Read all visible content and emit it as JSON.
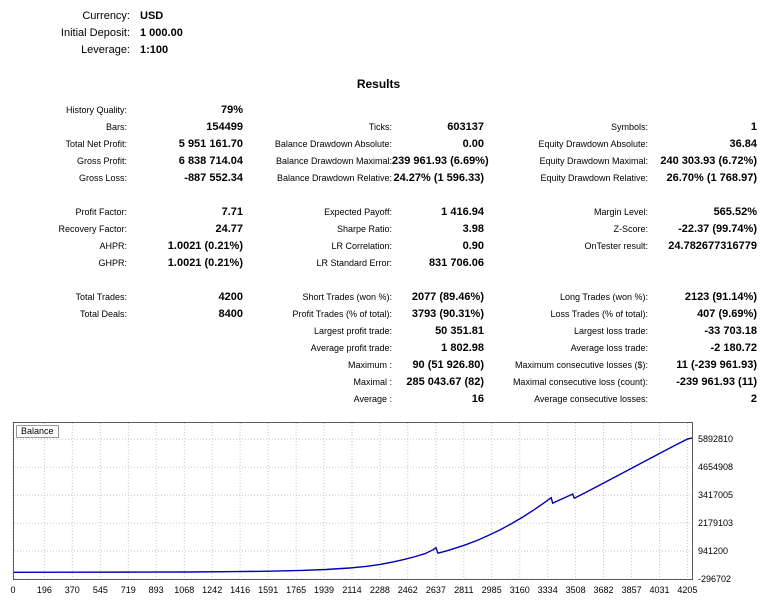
{
  "header": {
    "rows": [
      {
        "label": "Currency:",
        "value": "USD"
      },
      {
        "label": "Initial Deposit:",
        "value": "1 000.00"
      },
      {
        "label": "Leverage:",
        "value": "1:100"
      }
    ]
  },
  "stats": {
    "title": "Results",
    "sections": [
      {
        "rows": [
          [
            [
              "History Quality:",
              "79%"
            ],
            [
              "",
              ""
            ],
            [
              "",
              ""
            ]
          ],
          [
            [
              "Bars:",
              "154499"
            ],
            [
              "Ticks:",
              "603137"
            ],
            [
              "Symbols:",
              "1"
            ]
          ],
          [
            [
              "Total Net Profit:",
              "5 951 161.70"
            ],
            [
              "Balance Drawdown Absolute:",
              "0.00"
            ],
            [
              "Equity Drawdown Absolute:",
              "36.84"
            ]
          ],
          [
            [
              "Gross Profit:",
              "6 838 714.04"
            ],
            [
              "Balance Drawdown Maximal:",
              "239 961.93 (6.69%)"
            ],
            [
              "Equity Drawdown Maximal:",
              "240 303.93 (6.72%)"
            ]
          ],
          [
            [
              "Gross Loss:",
              "-887 552.34"
            ],
            [
              "Balance Drawdown Relative:",
              "24.27% (1 596.33)"
            ],
            [
              "Equity Drawdown Relative:",
              "26.70% (1 768.97)"
            ]
          ]
        ]
      },
      {
        "rows": [
          [
            [
              "Profit Factor:",
              "7.71"
            ],
            [
              "Expected Payoff:",
              "1 416.94"
            ],
            [
              "Margin Level:",
              "565.52%"
            ]
          ],
          [
            [
              "Recovery Factor:",
              "24.77"
            ],
            [
              "Sharpe Ratio:",
              "3.98"
            ],
            [
              "Z-Score:",
              "-22.37 (99.74%)"
            ]
          ],
          [
            [
              "AHPR:",
              "1.0021 (0.21%)"
            ],
            [
              "LR Correlation:",
              "0.90"
            ],
            [
              "OnTester result:",
              "24.782677316779"
            ]
          ],
          [
            [
              "GHPR:",
              "1.0021 (0.21%)"
            ],
            [
              "LR Standard Error:",
              "831 706.06"
            ],
            [
              "",
              ""
            ]
          ]
        ]
      },
      {
        "rows": [
          [
            [
              "Total Trades:",
              "4200"
            ],
            [
              "Short Trades (won %):",
              "2077 (89.46%)"
            ],
            [
              "Long Trades (won %):",
              "2123 (91.14%)"
            ]
          ],
          [
            [
              "Total Deals:",
              "8400"
            ],
            [
              "Profit Trades (% of total):",
              "3793 (90.31%)"
            ],
            [
              "Loss Trades (% of total):",
              "407 (9.69%)"
            ]
          ],
          [
            [
              "",
              ""
            ],
            [
              "Largest profit trade:",
              "50 351.81"
            ],
            [
              "Largest loss trade:",
              "-33 703.18"
            ]
          ],
          [
            [
              "",
              ""
            ],
            [
              "Average profit trade:",
              "1 802.98"
            ],
            [
              "Average loss trade:",
              "-2 180.72"
            ]
          ],
          [
            [
              "",
              ""
            ],
            [
              "Maximum :",
              "90 (51 926.80)"
            ],
            [
              "Maximum consecutive losses ($):",
              "11 (-239 961.93)"
            ]
          ],
          [
            [
              "",
              ""
            ],
            [
              "Maximal :",
              "285 043.67 (82)"
            ],
            [
              "Maximal consecutive loss (count):",
              "-239 961.93 (11)"
            ]
          ],
          [
            [
              "",
              ""
            ],
            [
              "Average :",
              "16"
            ],
            [
              "Average consecutive losses:",
              "2"
            ]
          ]
        ]
      }
    ]
  },
  "chart_data": {
    "type": "line",
    "title": "Balance",
    "line_color": "#0000b8",
    "grid": "dotted",
    "x_range": [
      0,
      4240
    ],
    "y_range": [
      -340000,
      6650000
    ],
    "x_ticks": [
      0,
      196,
      370,
      545,
      719,
      893,
      1068,
      1242,
      1416,
      1591,
      1765,
      1939,
      2114,
      2288,
      2462,
      2637,
      2811,
      2985,
      3160,
      3334,
      3508,
      3682,
      3857,
      4031,
      4205
    ],
    "y_ticks": [
      -296702,
      941200,
      2179103,
      3417005,
      4654908,
      5892810
    ],
    "series": [
      {
        "name": "Balance",
        "points": [
          [
            0,
            1000
          ],
          [
            400,
            3000
          ],
          [
            800,
            8000
          ],
          [
            1100,
            16000
          ],
          [
            1400,
            30000
          ],
          [
            1600,
            50000
          ],
          [
            1800,
            85000
          ],
          [
            1950,
            125000
          ],
          [
            2100,
            190000
          ],
          [
            2200,
            260000
          ],
          [
            2290,
            350000
          ],
          [
            2370,
            460000
          ],
          [
            2440,
            570000
          ],
          [
            2510,
            700000
          ],
          [
            2570,
            830000
          ],
          [
            2620,
            1000000
          ],
          [
            2637,
            1090000
          ],
          [
            2650,
            845000
          ],
          [
            2700,
            940000
          ],
          [
            2760,
            1070000
          ],
          [
            2830,
            1240000
          ],
          [
            2900,
            1430000
          ],
          [
            2970,
            1650000
          ],
          [
            3040,
            1890000
          ],
          [
            3110,
            2160000
          ],
          [
            3180,
            2450000
          ],
          [
            3250,
            2770000
          ],
          [
            3320,
            3120000
          ],
          [
            3355,
            3300000
          ],
          [
            3365,
            3060000
          ],
          [
            3420,
            3240000
          ],
          [
            3470,
            3400000
          ],
          [
            3490,
            3460000
          ],
          [
            3500,
            3280000
          ],
          [
            3540,
            3420000
          ],
          [
            3600,
            3640000
          ],
          [
            3680,
            3940000
          ],
          [
            3760,
            4240000
          ],
          [
            3840,
            4540000
          ],
          [
            3920,
            4840000
          ],
          [
            4000,
            5140000
          ],
          [
            4080,
            5440000
          ],
          [
            4150,
            5700000
          ],
          [
            4205,
            5892810
          ],
          [
            4240,
            5951161
          ]
        ]
      }
    ]
  }
}
